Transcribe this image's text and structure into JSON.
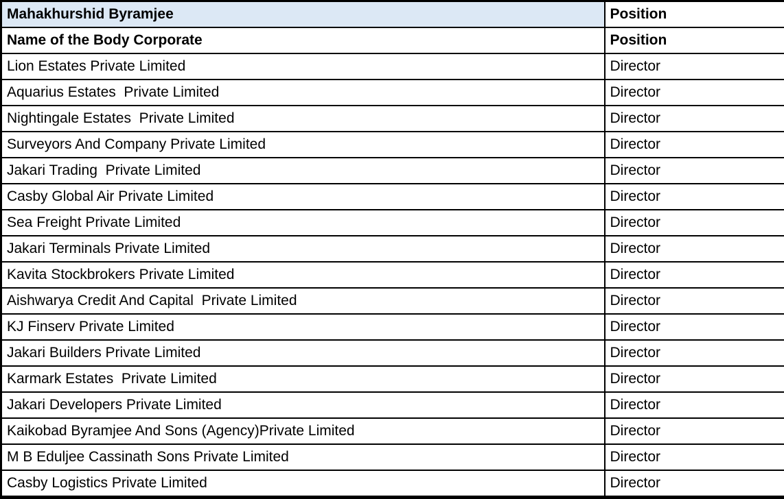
{
  "table": {
    "person_header": {
      "name": "Mahakhurshid Byramjee",
      "position": "Position"
    },
    "column_header": {
      "name": "Name of the Body Corporate",
      "position": "Position"
    },
    "rows": [
      {
        "name": "Lion Estates Private Limited",
        "position": "Director"
      },
      {
        "name": "Aquarius Estates  Private Limited",
        "position": "Director"
      },
      {
        "name": "Nightingale Estates  Private Limited",
        "position": "Director"
      },
      {
        "name": "Surveyors And Company Private Limited",
        "position": "Director"
      },
      {
        "name": "Jakari Trading  Private Limited",
        "position": "Director"
      },
      {
        "name": "Casby Global Air Private Limited",
        "position": "Director"
      },
      {
        "name": "Sea Freight Private Limited",
        "position": "Director"
      },
      {
        "name": "Jakari Terminals Private Limited",
        "position": "Director"
      },
      {
        "name": "Kavita Stockbrokers Private Limited",
        "position": "Director"
      },
      {
        "name": "Aishwarya Credit And Capital  Private Limited",
        "position": "Director"
      },
      {
        "name": "KJ Finserv Private Limited",
        "position": "Director"
      },
      {
        "name": "Jakari Builders Private Limited",
        "position": "Director"
      },
      {
        "name": "Karmark Estates  Private Limited",
        "position": "Director"
      },
      {
        "name": "Jakari Developers Private Limited",
        "position": "Director"
      },
      {
        "name": "Kaikobad Byramjee And Sons (Agency)Private Limited",
        "position": "Director"
      },
      {
        "name": "M B Eduljee Cassinath Sons Private Limited",
        "position": "Director"
      },
      {
        "name": "Casby Logistics Private Limited",
        "position": "Director"
      }
    ],
    "colors": {
      "header_highlight": "#dce8f5",
      "border": "#000000",
      "background": "#ffffff",
      "text": "#000000"
    }
  }
}
